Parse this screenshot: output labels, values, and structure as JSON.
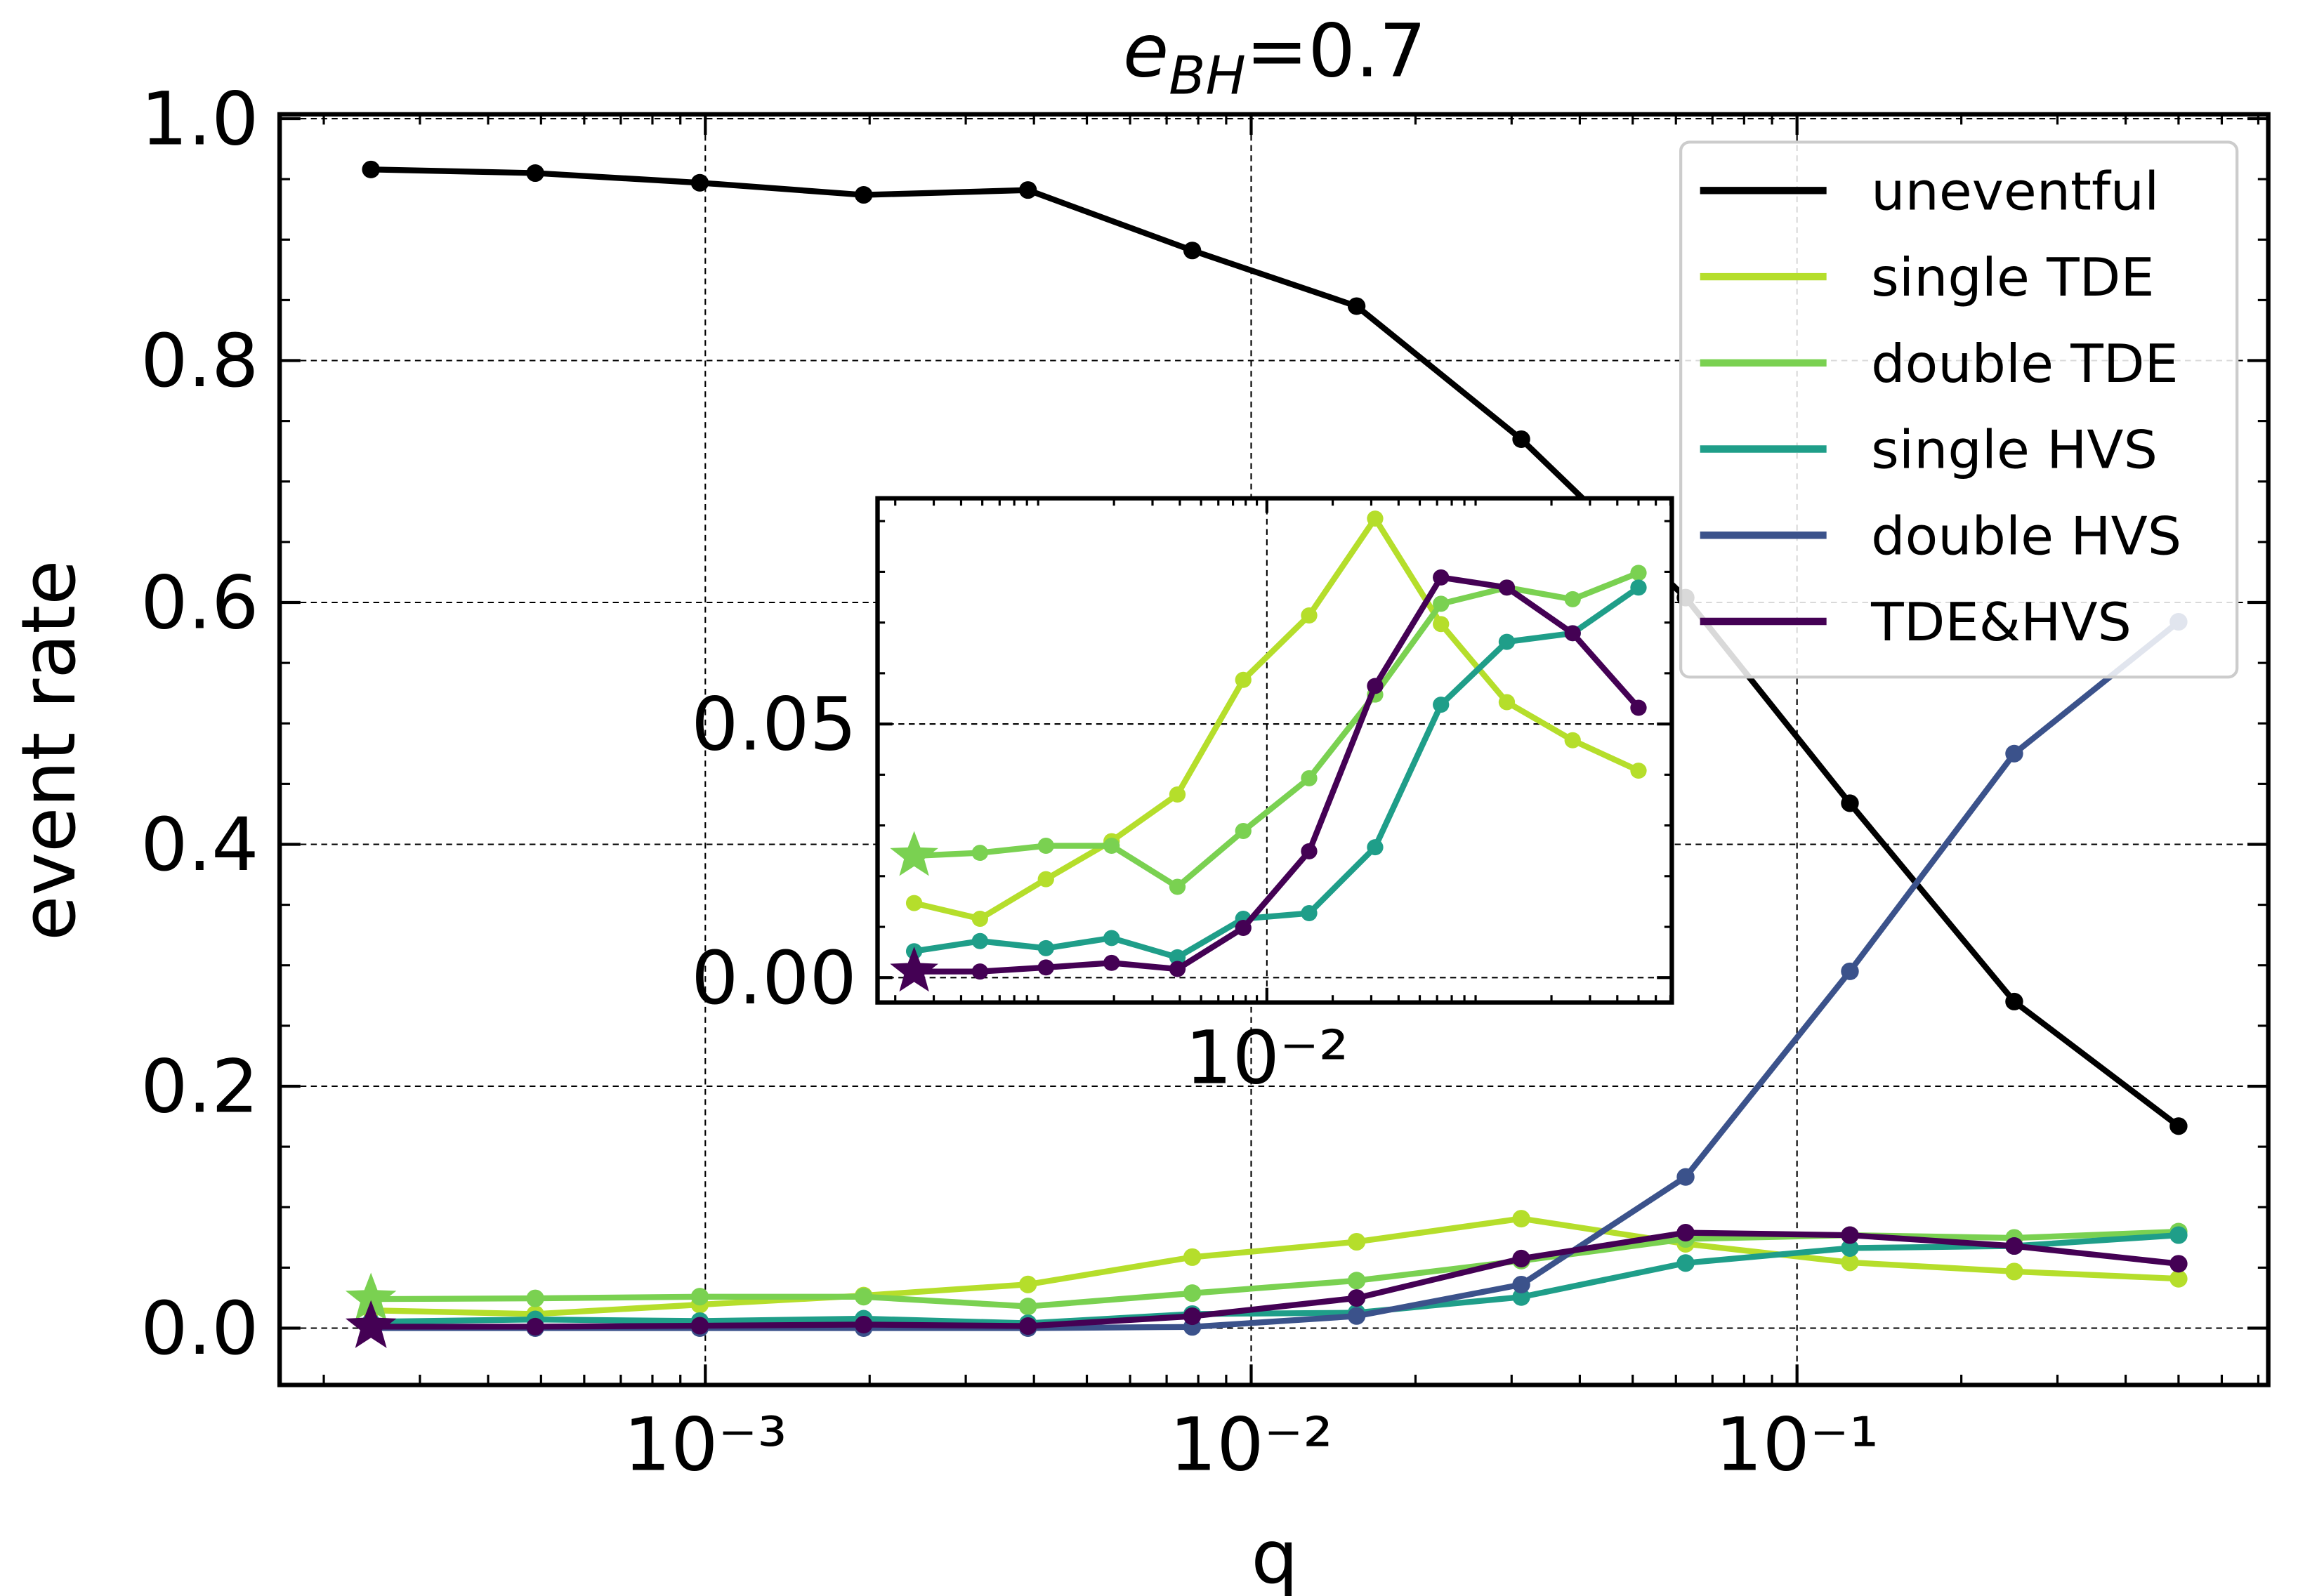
{
  "chart_data": {
    "type": "line",
    "title_parts": [
      "e",
      "BH",
      "=0.7"
    ],
    "xlabel": "q",
    "ylabel": "event rate",
    "xscale": "log",
    "x": [
      0.000244,
      0.000488,
      0.000977,
      0.00195,
      0.0039,
      0.0078,
      0.0156,
      0.03125,
      0.0625,
      0.125,
      0.25,
      0.5
    ],
    "xlim": [
      0.000166,
      0.73
    ],
    "xticks": [
      {
        "value": 0.001,
        "label": "10⁻³"
      },
      {
        "value": 0.01,
        "label": "10⁻²"
      },
      {
        "value": 0.1,
        "label": "10⁻¹"
      }
    ],
    "ylim": [
      -0.047,
      1.0036
    ],
    "yticks": [
      {
        "value": 0,
        "label": "0.0"
      },
      {
        "value": 0.2,
        "label": "0.2"
      },
      {
        "value": 0.4,
        "label": "0.4"
      },
      {
        "value": 0.6,
        "label": "0.6"
      },
      {
        "value": 0.8,
        "label": "0.8"
      },
      {
        "value": 1,
        "label": "1.0"
      }
    ],
    "yminor_step": 0.05,
    "grid": true,
    "legend": "upper right",
    "series": [
      {
        "name": "uneventful",
        "color": "#000000",
        "values": [
          0.958,
          0.955,
          0.947,
          0.937,
          0.941,
          0.891,
          0.845,
          0.735,
          0.604,
          0.434,
          0.27,
          0.167
        ]
      },
      {
        "name": "single TDE",
        "color": "#b5de2b",
        "values": [
          0.0147,
          0.0116,
          0.0194,
          0.0269,
          0.0361,
          0.0587,
          0.0714,
          0.0905,
          0.0697,
          0.0543,
          0.0468,
          0.0408
        ]
      },
      {
        "name": "double TDE",
        "color": "#7ad151",
        "marker_first": "star",
        "values": [
          0.024,
          0.0246,
          0.026,
          0.026,
          0.0179,
          0.0289,
          0.0393,
          0.0558,
          0.0737,
          0.0769,
          0.0746,
          0.0798
        ]
      },
      {
        "name": "single HVS",
        "color": "#1f9e89",
        "values": [
          0.0052,
          0.0072,
          0.0058,
          0.0078,
          0.004,
          0.0116,
          0.0127,
          0.0257,
          0.0538,
          0.0662,
          0.0679,
          0.0769
        ]
      },
      {
        "name": "double HVS",
        "color": "#3b528b",
        "values": [
          0,
          0,
          0,
          0,
          0,
          0.001,
          0.01,
          0.036,
          0.125,
          0.295,
          0.475,
          0.584
        ]
      },
      {
        "name": "TDE&HVS",
        "color": "#440154",
        "marker_first": "star",
        "values": [
          0.0012,
          0.0012,
          0.002,
          0.0029,
          0.0017,
          0.0098,
          0.0249,
          0.0575,
          0.0789,
          0.0769,
          0.0679,
          0.0532
        ]
      }
    ],
    "inset": {
      "series": [
        1,
        2,
        3,
        5
      ],
      "xlim": [
        0.000166,
        0.71
      ],
      "xticks": [
        {
          "value": 0.01,
          "label": "10⁻²"
        }
      ],
      "ylim": [
        -0.0049,
        0.0945
      ],
      "yticks": [
        {
          "value": 0,
          "label": "0.00"
        },
        {
          "value": 0.05,
          "label": "0.05"
        }
      ]
    }
  }
}
